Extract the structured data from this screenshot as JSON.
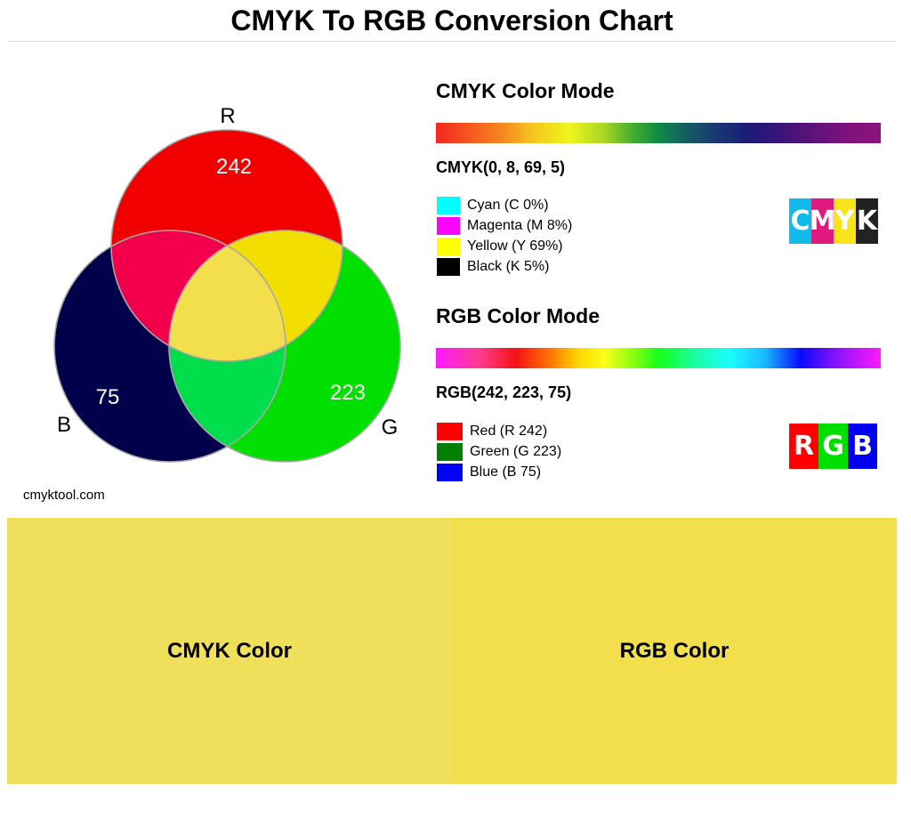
{
  "title": "CMYK To RGB Conversion Chart",
  "credit": "cmyktool.com",
  "venn": {
    "r_label": "R",
    "g_label": "G",
    "b_label": "B",
    "r_value": "242",
    "g_value": "223",
    "b_value": "75",
    "colors": {
      "red": "#f20000",
      "green": "#00df00",
      "blue": "#00004b",
      "red_green": "#f2df00",
      "red_blue": "#f2004b",
      "green_blue": "#00df4b",
      "center": "#f2df4b"
    }
  },
  "cmyk": {
    "heading": "CMYK Color Mode",
    "value": "CMYK(0, 8, 69, 5)",
    "legend": [
      {
        "label": "Cyan (C 0%)",
        "color": "#00ffff"
      },
      {
        "label": "Magenta (M 8%)",
        "color": "#ff00ff"
      },
      {
        "label": "Yellow (Y 69%)",
        "color": "#ffff00"
      },
      {
        "label": "Black (K 5%)",
        "color": "#000000"
      }
    ],
    "logo": [
      {
        "letter": "C",
        "color": "#0fbbe8"
      },
      {
        "letter": "M",
        "color": "#e0197e"
      },
      {
        "letter": "Y",
        "color": "#f9e31b"
      },
      {
        "letter": "K",
        "color": "#222222"
      }
    ]
  },
  "rgb": {
    "heading": "RGB Color Mode",
    "value": "RGB(242, 223, 75)",
    "legend": [
      {
        "label": "Red (R 242)",
        "color": "#ff0000"
      },
      {
        "label": "Green (G 223)",
        "color": "#008000"
      },
      {
        "label": "Blue (B 75)",
        "color": "#0000ff"
      }
    ],
    "logo": [
      {
        "letter": "R",
        "color": "#ff0000"
      },
      {
        "letter": "G",
        "color": "#00e000"
      },
      {
        "letter": "B",
        "color": "#0000ee"
      }
    ]
  },
  "samples": {
    "cmyk_label": "CMYK Color",
    "cmyk_color": "#f0df5a",
    "rgb_label": "RGB Color",
    "rgb_color": "#f2df4b"
  }
}
